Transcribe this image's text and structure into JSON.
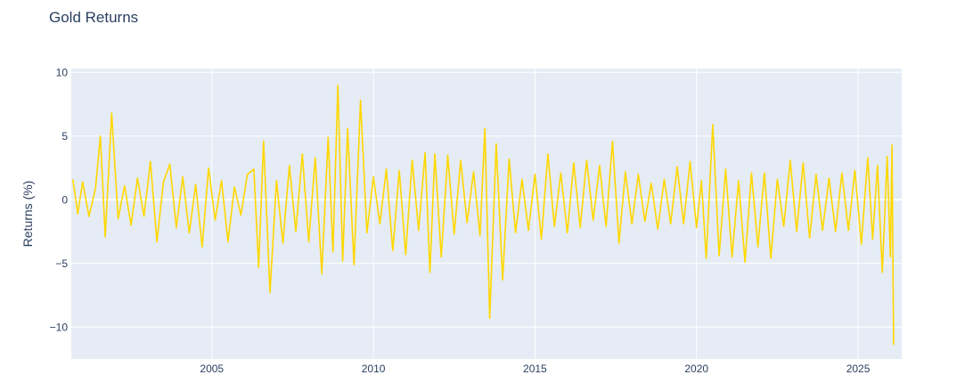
{
  "chart_data": {
    "type": "line",
    "title": "Gold Returns",
    "xlabel": "",
    "ylabel": "Returns (%)",
    "xlim": [
      2000.65,
      2026.35
    ],
    "ylim": [
      -12.5,
      10.3
    ],
    "x_ticks": [
      2005,
      2010,
      2015,
      2020,
      2025
    ],
    "x_tick_labels": [
      "2005",
      "2010",
      "2015",
      "2020",
      "2025"
    ],
    "y_ticks": [
      10,
      5,
      0,
      -5,
      -10
    ],
    "y_tick_labels": [
      "10",
      "5",
      "0",
      "−5",
      "−10"
    ],
    "grid": true,
    "series": [
      {
        "color": "#FFD700",
        "x": [
          2000.7,
          2000.85,
          2001.0,
          2001.2,
          2001.4,
          2001.55,
          2001.7,
          2001.9,
          2002.1,
          2002.3,
          2002.5,
          2002.7,
          2002.9,
          2003.1,
          2003.3,
          2003.5,
          2003.7,
          2003.9,
          2004.1,
          2004.3,
          2004.5,
          2004.7,
          2004.9,
          2005.1,
          2005.3,
          2005.5,
          2005.7,
          2005.9,
          2006.1,
          2006.3,
          2006.45,
          2006.6,
          2006.8,
          2007.0,
          2007.2,
          2007.4,
          2007.6,
          2007.8,
          2008.0,
          2008.2,
          2008.4,
          2008.6,
          2008.75,
          2008.9,
          2009.05,
          2009.2,
          2009.4,
          2009.6,
          2009.8,
          2010.0,
          2010.2,
          2010.4,
          2010.6,
          2010.8,
          2011.0,
          2011.2,
          2011.4,
          2011.6,
          2011.75,
          2011.9,
          2012.1,
          2012.3,
          2012.5,
          2012.7,
          2012.9,
          2013.1,
          2013.3,
          2013.45,
          2013.6,
          2013.8,
          2014.0,
          2014.2,
          2014.4,
          2014.6,
          2014.8,
          2015.0,
          2015.2,
          2015.4,
          2015.6,
          2015.8,
          2016.0,
          2016.2,
          2016.4,
          2016.6,
          2016.8,
          2017.0,
          2017.2,
          2017.4,
          2017.6,
          2017.8,
          2018.0,
          2018.2,
          2018.4,
          2018.6,
          2018.8,
          2019.0,
          2019.2,
          2019.4,
          2019.6,
          2019.8,
          2020.0,
          2020.15,
          2020.3,
          2020.5,
          2020.7,
          2020.9,
          2021.1,
          2021.3,
          2021.5,
          2021.7,
          2021.9,
          2022.1,
          2022.3,
          2022.5,
          2022.7,
          2022.9,
          2023.1,
          2023.3,
          2023.5,
          2023.7,
          2023.9,
          2024.1,
          2024.3,
          2024.5,
          2024.7,
          2024.9,
          2025.1,
          2025.3,
          2025.45,
          2025.6,
          2025.75,
          2025.9,
          2026.0,
          2026.05,
          2026.1
        ],
        "y": [
          1.6,
          -1.1,
          1.4,
          -1.3,
          0.9,
          5.0,
          -2.9,
          6.8,
          -1.5,
          1.1,
          -2.0,
          1.7,
          -1.3,
          3.0,
          -3.3,
          1.4,
          2.8,
          -2.2,
          1.8,
          -2.6,
          1.2,
          -3.7,
          2.5,
          -1.6,
          1.5,
          -3.3,
          1.0,
          -1.2,
          2.0,
          2.4,
          -5.3,
          4.6,
          -7.3,
          1.5,
          -3.4,
          2.7,
          -2.5,
          3.6,
          -3.3,
          3.3,
          -5.8,
          4.9,
          -4.1,
          9.0,
          -4.8,
          5.6,
          -5.1,
          7.8,
          -2.6,
          1.8,
          -1.9,
          2.4,
          -4.0,
          2.3,
          -4.3,
          3.1,
          -2.4,
          3.7,
          -5.7,
          3.6,
          -4.5,
          3.5,
          -2.7,
          3.1,
          -1.8,
          2.2,
          -2.8,
          5.6,
          -9.3,
          4.4,
          -6.3,
          3.2,
          -2.6,
          1.6,
          -2.4,
          2.0,
          -3.1,
          3.6,
          -2.1,
          2.1,
          -2.6,
          2.9,
          -2.2,
          3.1,
          -1.6,
          2.7,
          -2.1,
          4.6,
          -3.4,
          2.2,
          -1.9,
          2.0,
          -1.7,
          1.3,
          -2.3,
          1.6,
          -1.9,
          2.6,
          -1.9,
          3.0,
          -2.2,
          1.5,
          -4.6,
          5.9,
          -4.4,
          2.4,
          -4.5,
          1.5,
          -4.9,
          2.1,
          -3.7,
          2.1,
          -4.6,
          1.6,
          -2.1,
          3.1,
          -2.5,
          2.9,
          -3.0,
          2.0,
          -2.4,
          1.7,
          -2.5,
          2.1,
          -2.4,
          2.3,
          -3.5,
          3.3,
          -3.1,
          2.7,
          -5.7,
          3.4,
          -4.5,
          4.3,
          -11.4
        ]
      }
    ]
  }
}
